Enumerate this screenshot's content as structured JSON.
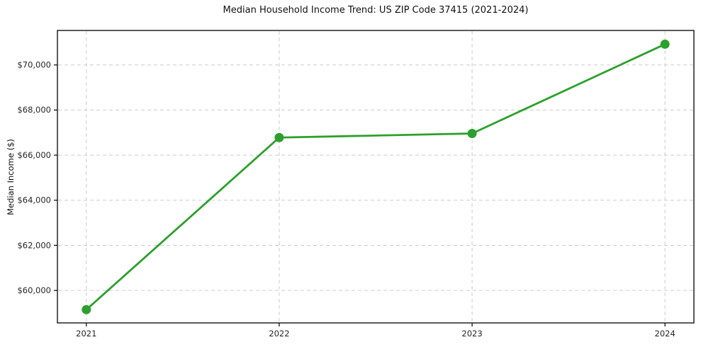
{
  "page": {
    "background_color": "#ffffff"
  },
  "chart_data": {
    "type": "line",
    "title": "Median Household Income Trend: US ZIP Code 37415 (2021-2024)",
    "xlabel": "",
    "ylabel": "Median Income ($)",
    "categories": [
      "2021",
      "2022",
      "2023",
      "2024"
    ],
    "series": [
      {
        "color": "#2ca02c",
        "values": [
          59150,
          66780,
          66960,
          70920
        ],
        "marker": "circle",
        "line_width": 2.8,
        "marker_radius": 6.5
      }
    ],
    "y_ticks": [
      {
        "value": 60000,
        "label": "$60,000"
      },
      {
        "value": 62000,
        "label": "$62,000"
      },
      {
        "value": 64000,
        "label": "$64,000"
      },
      {
        "value": 66000,
        "label": "$66,000"
      },
      {
        "value": 68000,
        "label": "$68,000"
      },
      {
        "value": 70000,
        "label": "$70,000"
      }
    ],
    "ylim": [
      58560,
      71530
    ],
    "xlim": [
      -0.15,
      3.15
    ],
    "grid": {
      "visible": true,
      "style": "dashed",
      "color": "#cccccc"
    },
    "legend": "none",
    "frame_color": "#000000",
    "tick_label_color": "#262626"
  }
}
